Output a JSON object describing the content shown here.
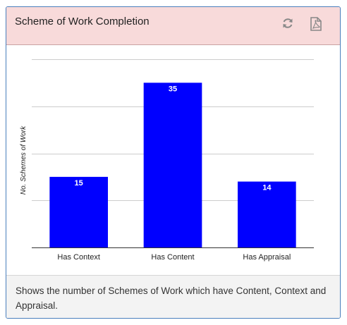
{
  "panel": {
    "title": "Scheme of Work Completion",
    "footer": "Shows the number of Schemes of Work which have Content, Context and Appraisal.",
    "icons": {
      "refresh": "refresh-icon",
      "pdf": "pdf-export-icon"
    }
  },
  "colors": {
    "header_bg": "#f8dada",
    "bar": "#0000ff",
    "border": "#4a7fbd"
  },
  "chart_data": {
    "type": "bar",
    "categories": [
      "Has Context",
      "Has Content",
      "Has Appraisal"
    ],
    "values": [
      15,
      35,
      14
    ],
    "title": "",
    "xlabel": "",
    "ylabel": "No. Schemes of Work",
    "ylim": [
      0,
      40
    ],
    "grid": true,
    "data_labels": true
  }
}
